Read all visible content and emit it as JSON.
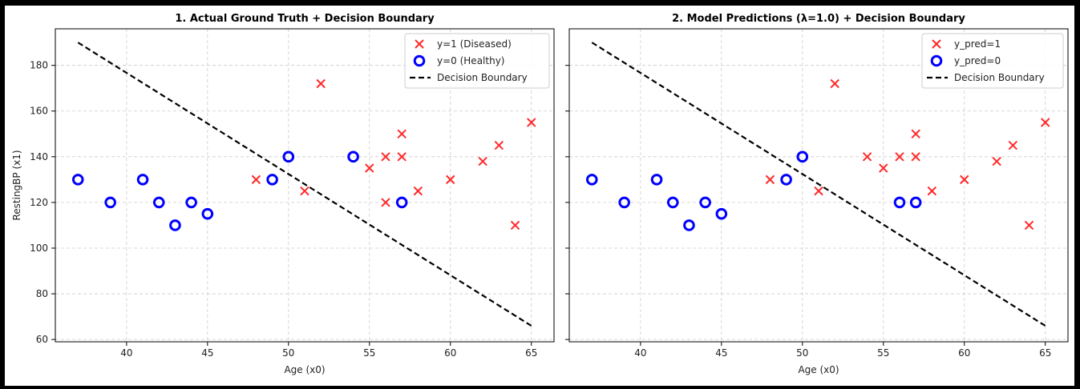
{
  "chart_data": [
    {
      "type": "scatter",
      "title": "1. Actual Ground Truth + Decision Boundary",
      "xlabel": "Age (x0)",
      "ylabel": "RestingBP (x1)",
      "xlim": [
        35.6,
        66.4
      ],
      "ylim": [
        59,
        196
      ],
      "xticks": [
        "40",
        "45",
        "50",
        "55",
        "60",
        "65"
      ],
      "yticks": [
        "60",
        "80",
        "100",
        "120",
        "140",
        "160",
        "180"
      ],
      "grid": true,
      "legend_position": "top-right",
      "series": [
        {
          "name": "y=1 (Diseased)",
          "marker": "x",
          "color": "#ff2a2a",
          "x": [
            48,
            51,
            52,
            55,
            56,
            56,
            57,
            57,
            58,
            60,
            62,
            63,
            64,
            65
          ],
          "y": [
            130,
            125,
            172,
            135,
            140,
            120,
            150,
            140,
            125,
            130,
            138,
            145,
            110,
            155
          ]
        },
        {
          "name": "y=0 (Healthy)",
          "marker": "o",
          "color": "#0000ff",
          "x": [
            37,
            39,
            41,
            42,
            43,
            44,
            45,
            49,
            50,
            54,
            57
          ],
          "y": [
            130,
            120,
            130,
            120,
            110,
            120,
            115,
            130,
            140,
            140,
            120
          ]
        }
      ],
      "boundary": {
        "name": "Decision Boundary",
        "color": "#000000",
        "x": [
          37,
          65
        ],
        "y": [
          190,
          66
        ]
      }
    },
    {
      "type": "scatter",
      "title": "2. Model Predictions (λ=1.0) + Decision Boundary",
      "xlabel": "Age (x0)",
      "ylabel": "",
      "xlim": [
        35.6,
        66.4
      ],
      "ylim": [
        59,
        196
      ],
      "xticks": [
        "40",
        "45",
        "50",
        "55",
        "60",
        "65"
      ],
      "yticks": [],
      "grid": true,
      "legend_position": "top-right",
      "series": [
        {
          "name": "y_pred=1",
          "marker": "x",
          "color": "#ff2a2a",
          "x": [
            48,
            51,
            52,
            54,
            55,
            56,
            57,
            57,
            58,
            60,
            62,
            63,
            64,
            65
          ],
          "y": [
            130,
            125,
            172,
            140,
            135,
            140,
            150,
            140,
            125,
            130,
            138,
            145,
            110,
            155
          ]
        },
        {
          "name": "y_pred=0",
          "marker": "o",
          "color": "#0000ff",
          "x": [
            37,
            39,
            41,
            42,
            43,
            44,
            45,
            49,
            50,
            56,
            57
          ],
          "y": [
            130,
            120,
            130,
            120,
            110,
            120,
            115,
            130,
            140,
            120,
            120
          ]
        }
      ],
      "boundary": {
        "name": "Decision Boundary",
        "color": "#000000",
        "x": [
          37,
          65
        ],
        "y": [
          190,
          66
        ]
      }
    }
  ]
}
